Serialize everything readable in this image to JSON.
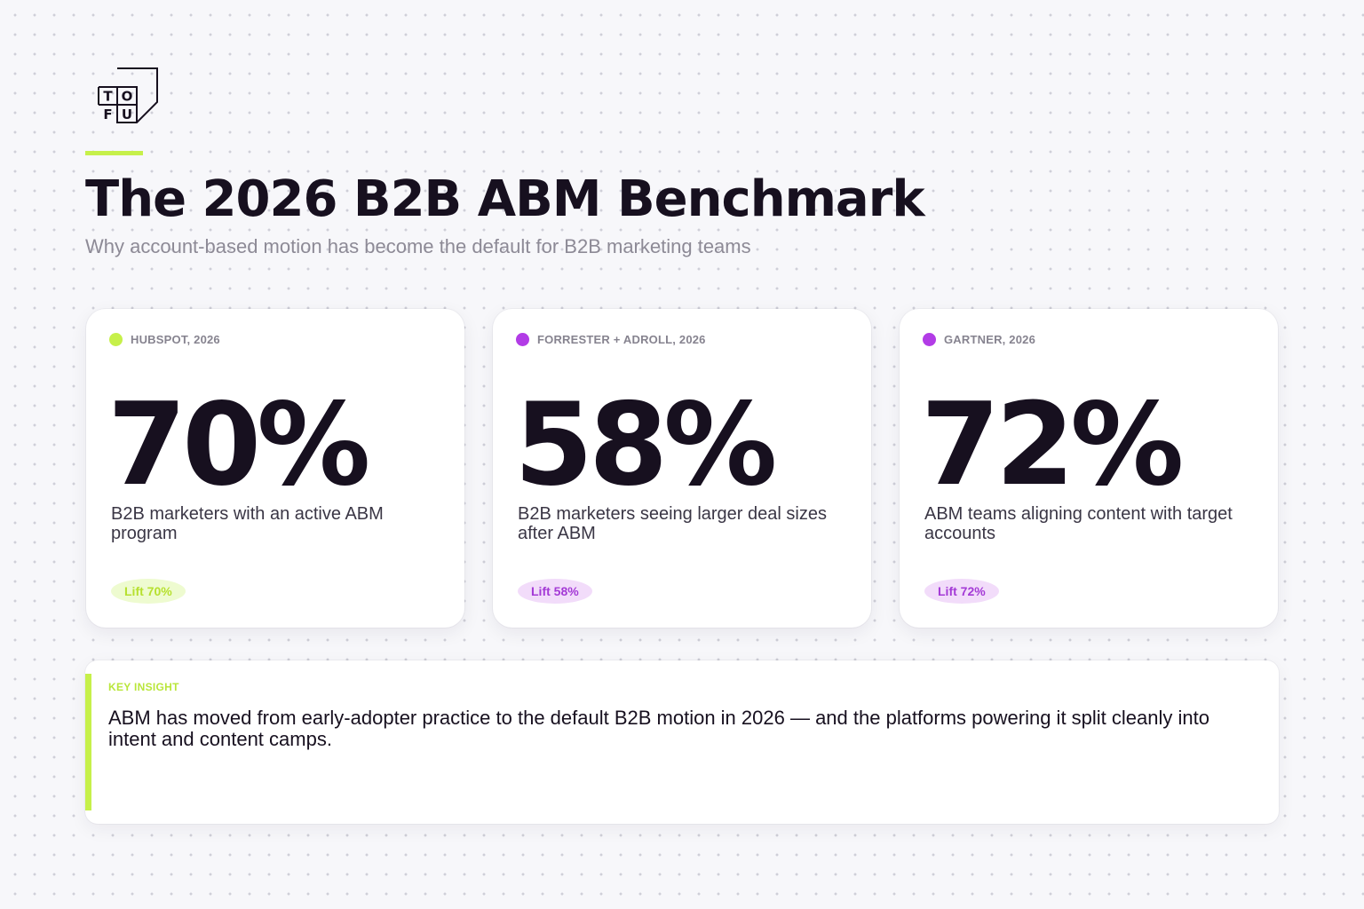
{
  "brand": {
    "logo_letters": [
      "T",
      "O",
      "F",
      "U"
    ],
    "accent_color": "#c6f04a",
    "purple_color": "#b23ce6"
  },
  "header": {
    "title": "The 2026 B2B ABM Benchmark",
    "subtitle": "Why account-based motion has become the default for B2B marketing teams"
  },
  "stats": [
    {
      "source": "HUBSPOT, 2026",
      "dot_color": "#c6f04a",
      "value": "70%",
      "description": "B2B marketers with an active ABM program",
      "badge": "Lift 70%",
      "badge_bg": "#eefbd0",
      "badge_color": "#b6e02e"
    },
    {
      "source": "FORRESTER + ADROLL, 2026",
      "dot_color": "#b23ce6",
      "value": "58%",
      "description": "B2B marketers seeing larger deal sizes after ABM",
      "badge": "Lift 58%",
      "badge_bg": "#f2dcfa",
      "badge_color": "#a43ad6"
    },
    {
      "source": "GARTNER, 2026",
      "dot_color": "#b23ce6",
      "value": "72%",
      "description": "ABM teams aligning content with target accounts",
      "badge": "Lift 72%",
      "badge_bg": "#f2dcfa",
      "badge_color": "#a43ad6"
    }
  ],
  "insight": {
    "label": "KEY INSIGHT",
    "text": "ABM has moved from early-adopter practice to the default B2B motion in 2026 — and the platforms powering it split cleanly into intent and content camps."
  }
}
